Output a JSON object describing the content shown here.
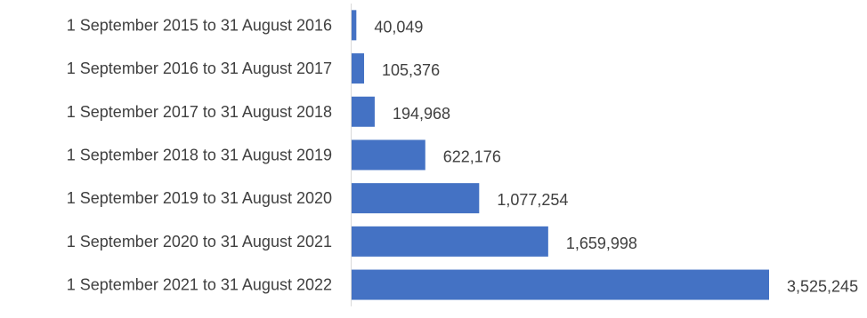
{
  "chart_data": {
    "type": "bar",
    "orientation": "horizontal",
    "categories": [
      "1 September 2015 to 31 August 2016",
      "1 September 2016 to 31 August 2017",
      "1 September 2017 to 31 August 2018",
      "1 September 2018 to 31 August 2019",
      "1 September 2019 to 31 August 2020",
      "1 September 2020 to 31 August 2021",
      "1 September 2021 to 31 August 2022"
    ],
    "values": [
      40049,
      105376,
      194968,
      622176,
      1077254,
      1659998,
      3525245
    ],
    "data_labels": [
      "40,049",
      "105,376",
      "194,968",
      "622,176",
      "1,077,254",
      "1,659,998",
      "3,525,245"
    ],
    "title": "",
    "xlabel": "",
    "ylabel": "",
    "xlim": [
      0,
      3525245
    ],
    "grid": false,
    "legend": "none",
    "bar_color": "#4472C4",
    "axis_color": "#D9D9D9",
    "text_color": "#404040"
  }
}
